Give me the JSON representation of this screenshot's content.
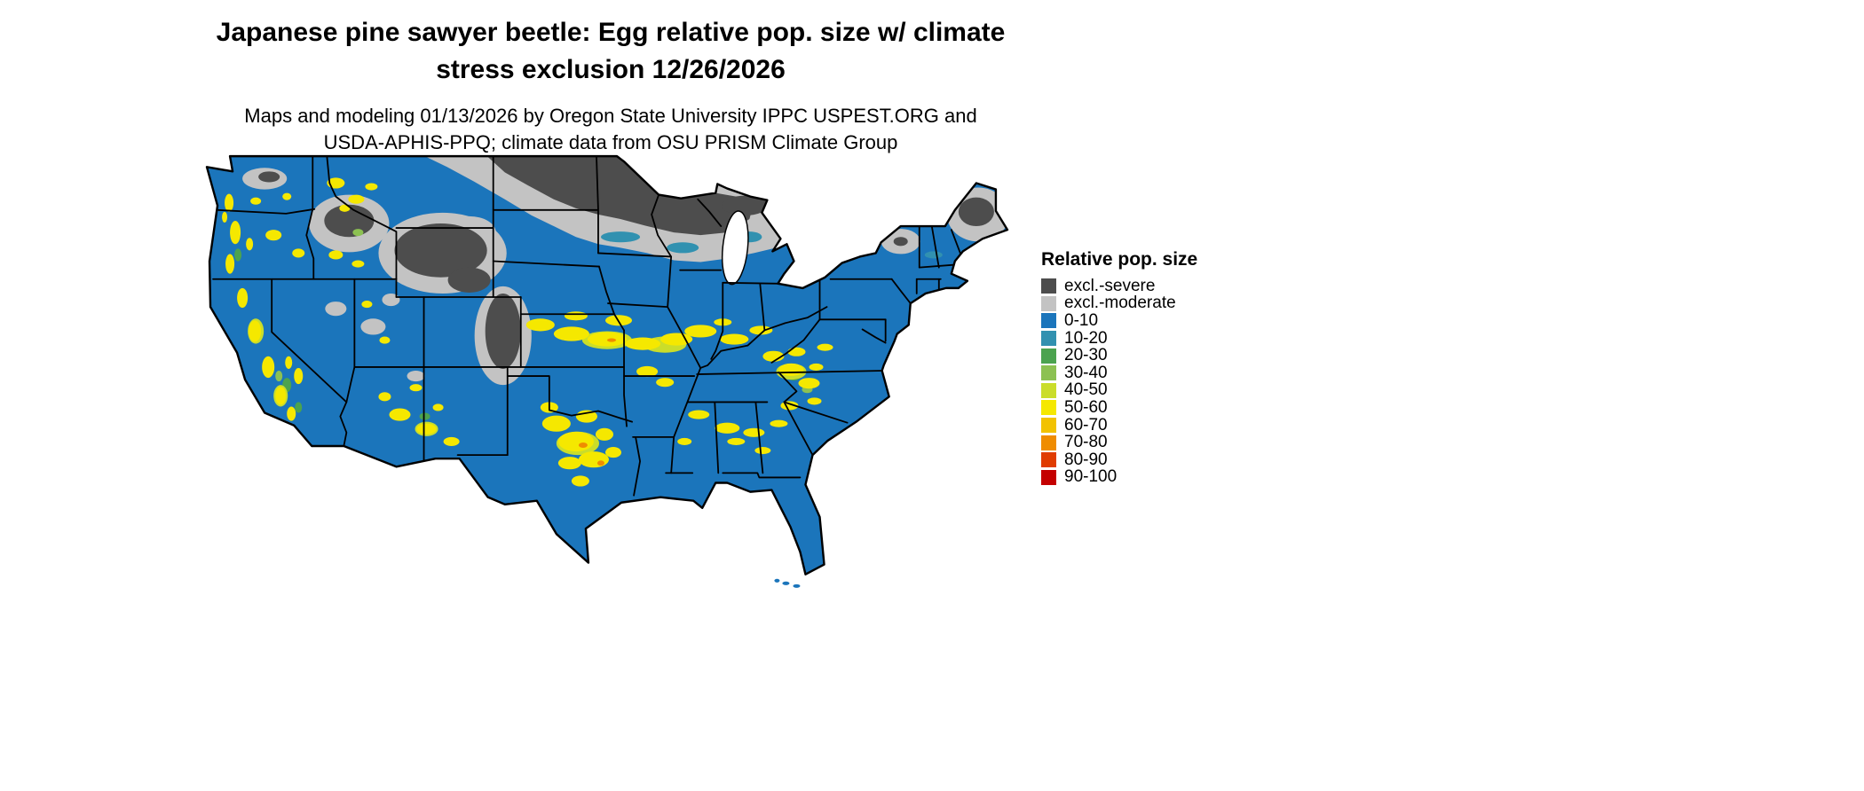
{
  "header": {
    "title_line1": "Japanese pine sawyer beetle: Egg relative pop. size w/ climate",
    "title_line2": "stress exclusion 12/26/2026",
    "subtitle_line1": "Maps and modeling 01/13/2026 by Oregon State University IPPC USPEST.ORG and",
    "subtitle_line2": "USDA-APHIS-PPQ; climate data from OSU PRISM Climate Group"
  },
  "legend": {
    "title": "Relative pop. size",
    "items": [
      {
        "label": "excl.-severe",
        "color": "#4d4d4d"
      },
      {
        "label": "excl.-moderate",
        "color": "#c3c3c3"
      },
      {
        "label": "0-10",
        "color": "#1b75bb"
      },
      {
        "label": "10-20",
        "color": "#3191b0"
      },
      {
        "label": "20-30",
        "color": "#4ba34f"
      },
      {
        "label": "30-40",
        "color": "#8cc152"
      },
      {
        "label": "40-50",
        "color": "#cadd2a"
      },
      {
        "label": "50-60",
        "color": "#f5e800"
      },
      {
        "label": "60-70",
        "color": "#f2c200"
      },
      {
        "label": "70-80",
        "color": "#ef8c00"
      },
      {
        "label": "80-90",
        "color": "#e03c00"
      },
      {
        "label": "90-100",
        "color": "#c40000"
      }
    ]
  },
  "map": {
    "outline_color": "#000000"
  }
}
